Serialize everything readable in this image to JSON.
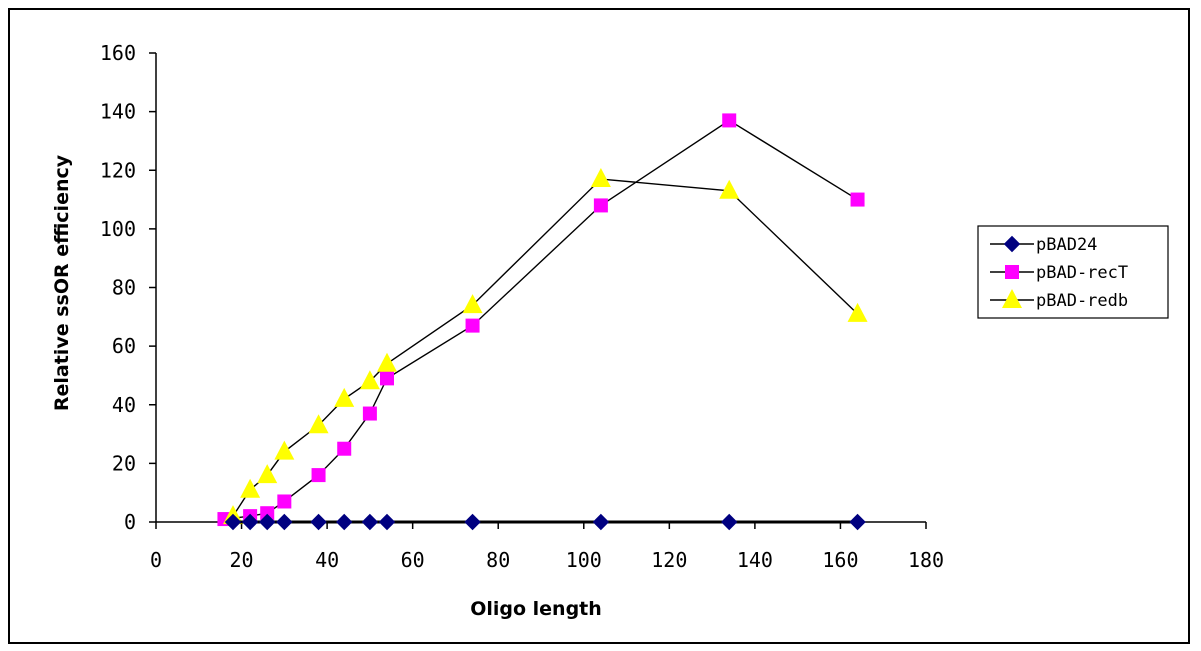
{
  "chart_data": {
    "type": "line",
    "xlabel": "Oligo length",
    "ylabel": "Relative ssOR efficiency",
    "xlim": [
      0,
      180
    ],
    "ylim": [
      0,
      160
    ],
    "xticks": [
      0,
      20,
      40,
      60,
      80,
      100,
      120,
      140,
      160,
      180
    ],
    "yticks": [
      0,
      20,
      40,
      60,
      80,
      100,
      120,
      140,
      160
    ],
    "grid": false,
    "legend_position": "right",
    "series": [
      {
        "name": "pBAD24",
        "marker": "diamond",
        "marker_color": "#000080",
        "line_color": "#000000",
        "x": [
          18,
          22,
          26,
          30,
          38,
          44,
          50,
          54,
          74,
          104,
          134,
          164
        ],
        "y": [
          0,
          0,
          0,
          0,
          0,
          0,
          0,
          0,
          0,
          0,
          0,
          0
        ]
      },
      {
        "name": "pBAD-recT",
        "marker": "square",
        "marker_color": "#ff00ff",
        "line_color": "#000000",
        "x": [
          16,
          22,
          26,
          30,
          38,
          44,
          50,
          54,
          74,
          104,
          134,
          164
        ],
        "y": [
          1,
          2,
          3,
          7,
          16,
          25,
          37,
          49,
          67,
          108,
          137,
          110
        ]
      },
      {
        "name": "pBAD-redb",
        "marker": "triangle",
        "marker_color": "#ffff00",
        "line_color": "#000000",
        "x": [
          18,
          22,
          26,
          30,
          38,
          44,
          50,
          54,
          74,
          104,
          134,
          164
        ],
        "y": [
          2,
          11,
          16,
          24,
          33,
          42,
          48,
          54,
          74,
          117,
          113,
          71
        ]
      }
    ]
  }
}
